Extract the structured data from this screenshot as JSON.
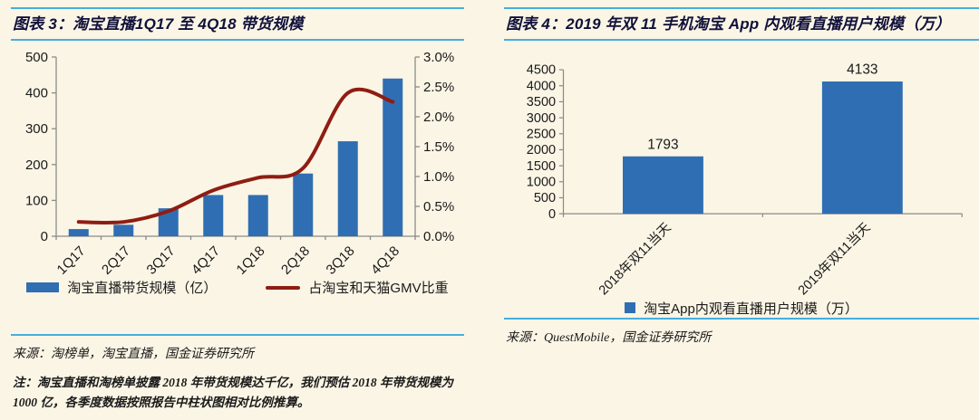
{
  "page": {
    "background": "#FBF5E5",
    "accent_line_color": "#46AEDE",
    "title_color": "#10103A",
    "bar_color": "#2F6EB3",
    "line_color": "#8F1D12"
  },
  "left_panel": {
    "source": "来源：淘榜单，淘宝直播，国金证券研究所",
    "note": "注：淘宝直播和淘榜单披露 2018 年带货规模达千亿，我们预估 2018 年带货规模为 1000 亿，各季度数据按照报告中柱状图相对比例推算。"
  },
  "right_panel": {
    "source": "来源：QuestMobile，国金证券研究所"
  },
  "chart_data": [
    {
      "type": "combo_bar_line",
      "title": "图表 3：淘宝直播1Q17 至 4Q18 带货规模",
      "categories": [
        "1Q17",
        "2Q17",
        "3Q17",
        "4Q17",
        "1Q18",
        "2Q18",
        "3Q18",
        "4Q18"
      ],
      "series": [
        {
          "name": "淘宝直播带货规模（亿）",
          "type": "bar",
          "axis": "left",
          "color": "#2F6EB3",
          "values": [
            20,
            32,
            78,
            115,
            115,
            175,
            265,
            440
          ]
        },
        {
          "name": "占淘宝和天猫GMV比重",
          "type": "line",
          "axis": "right",
          "color": "#8F1D12",
          "values": [
            0.24,
            0.24,
            0.42,
            0.77,
            0.98,
            1.14,
            2.4,
            2.25
          ]
        }
      ],
      "left_axis": {
        "min": 0,
        "max": 500,
        "step": 100
      },
      "right_axis": {
        "min": 0,
        "max": 3,
        "step": 0.5,
        "suffix": "%",
        "decimals": 1
      },
      "legend_position": "bottom",
      "grid": false
    },
    {
      "type": "bar",
      "title": "图表 4：2019 年双 11 手机淘宝 App 内观看直播用户规模（万）",
      "categories": [
        "2018年双11当天",
        "2019年双11当天"
      ],
      "values": [
        1793,
        4133
      ],
      "data_labels": [
        "1793",
        "4133"
      ],
      "series_name": "淘宝App内观看直播用户规模（万）",
      "ylim": [
        0,
        4500
      ],
      "ystep": 500,
      "color": "#2F6EB3",
      "legend_position": "bottom",
      "grid": false
    }
  ]
}
